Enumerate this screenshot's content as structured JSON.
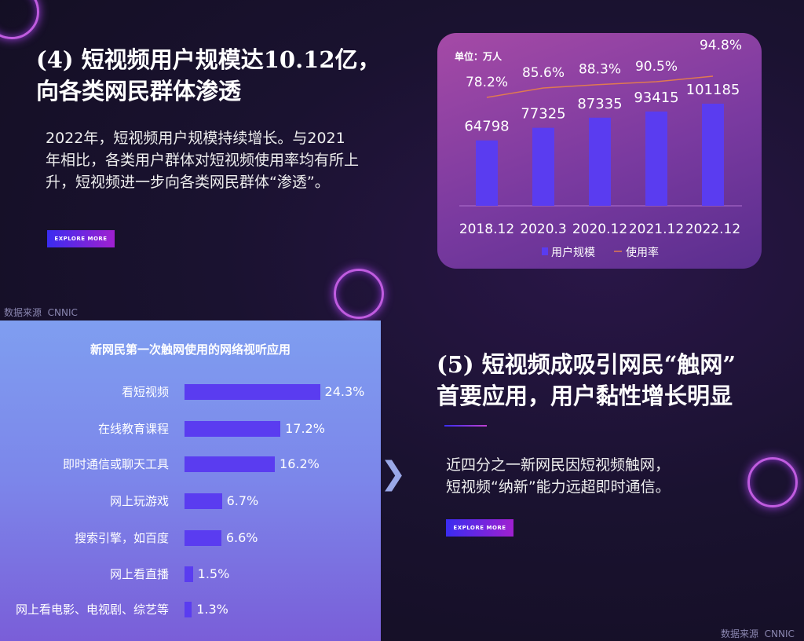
{
  "section4": {
    "title_line1": "(4) 短视频用户规模达10.12亿，",
    "title_line2": "向各类网民群体渗透",
    "body": [
      "2022年，短视频用户规模持续增长。与2021",
      "年相比，各类用户群体对短视频使用率均有所上",
      "升，短视频进一步向各类网民群体“渗透”。"
    ],
    "button": "EXPLORE MORE",
    "source_label": "数据来源",
    "source": "CNNIC"
  },
  "section5": {
    "title_line1": "(5) 短视频成吸引网民“触网”",
    "title_line2": "首要应用，用户黏性增长明显",
    "body": [
      "近四分之一新网民因短视频触网，",
      "短视频“纳新”能力远超即时通信。"
    ],
    "button": "EXPLORE MORE",
    "source_label": "数据来源",
    "source": "CNNIC"
  },
  "colors": {
    "bar": "#5a3cf0",
    "line": "#e07a50",
    "accent": "#a020d0"
  },
  "chart_data": [
    {
      "type": "bar",
      "unit_label": "单位：万人",
      "categories": [
        "2018.12",
        "2020.3",
        "2020.12",
        "2021.12",
        "2022.12"
      ],
      "series": [
        {
          "name": "用户规模",
          "type": "bar",
          "values": [
            64798,
            77325,
            87335,
            93415,
            101185
          ]
        },
        {
          "name": "使用率",
          "type": "line",
          "values": [
            78.2,
            85.6,
            88.3,
            90.5,
            94.8
          ],
          "labels": [
            "78.2%",
            "85.6%",
            "88.3%",
            "90.5%",
            "94.8%"
          ]
        }
      ],
      "legend": "bottom"
    },
    {
      "type": "bar",
      "orientation": "horizontal",
      "title": "新网民第一次触网使用的网络视听应用",
      "categories": [
        "看短视频",
        "在线教育课程",
        "即时通信或聊天工具",
        "网上玩游戏",
        "搜索引擎，如百度",
        "网上看直播",
        "网上看电影、电视剧、综艺等"
      ],
      "values": [
        24.3,
        17.2,
        16.2,
        6.7,
        6.6,
        1.5,
        1.3
      ],
      "labels": [
        "24.3%",
        "17.2%",
        "16.2%",
        "6.7%",
        "6.6%",
        "1.5%",
        "1.3%"
      ]
    }
  ]
}
